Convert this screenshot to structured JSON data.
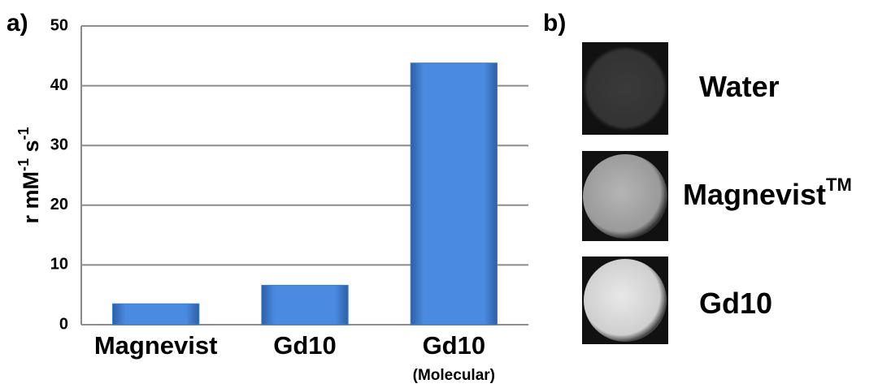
{
  "chart_data": {
    "type": "bar",
    "panel_label": "a)",
    "ylabel": [
      "r mM",
      "-1",
      " s",
      "-1"
    ],
    "categories": [
      "Magnevist",
      "Gd10",
      "Gd10"
    ],
    "category_notes": [
      null,
      null,
      "(Molecular)"
    ],
    "values": [
      3.5,
      6.6,
      43.8
    ],
    "color": "#3f7fd0",
    "ylim": [
      0,
      50
    ],
    "yticks": [
      0,
      10,
      20,
      30,
      40,
      50
    ],
    "grid": true
  },
  "panel_b": {
    "panel_label": "b)",
    "samples": [
      {
        "label": "Water"
      },
      {
        "label": "Magnevist",
        "mark": "TM"
      },
      {
        "label": "Gd10"
      }
    ]
  }
}
